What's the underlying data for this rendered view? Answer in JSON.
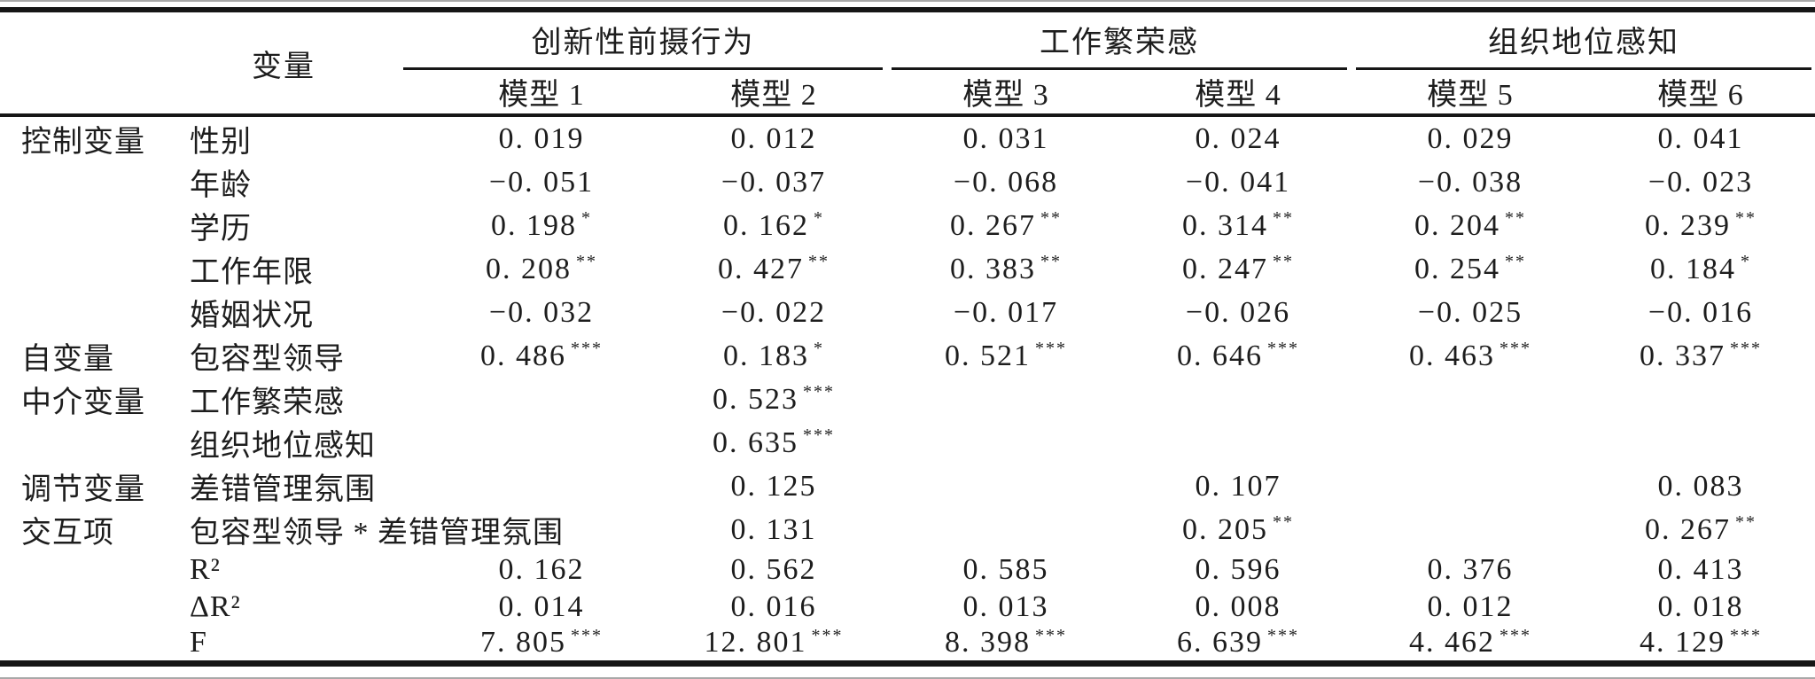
{
  "table": {
    "variable_header": "变量",
    "groups": [
      {
        "label": "创新性前摄行为",
        "models": [
          "模型 1",
          "模型 2"
        ]
      },
      {
        "label": "工作繁荣感",
        "models": [
          "模型 3",
          "模型 4"
        ]
      },
      {
        "label": "组织地位感知",
        "models": [
          "模型 5",
          "模型 6"
        ]
      }
    ],
    "rows": [
      {
        "category": "控制变量",
        "variable": "性别",
        "cells": [
          {
            "v": "0.019"
          },
          {
            "v": "0.012"
          },
          {
            "v": "0.031"
          },
          {
            "v": "0.024"
          },
          {
            "v": "0.029"
          },
          {
            "v": "0.041"
          }
        ]
      },
      {
        "category": "",
        "variable": "年龄",
        "cells": [
          {
            "v": "−0.051"
          },
          {
            "v": "−0.037"
          },
          {
            "v": "−0.068"
          },
          {
            "v": "−0.041"
          },
          {
            "v": "−0.038"
          },
          {
            "v": "−0.023"
          }
        ]
      },
      {
        "category": "",
        "variable": "学历",
        "cells": [
          {
            "v": "0.198",
            "sig": "*"
          },
          {
            "v": "0.162",
            "sig": "*"
          },
          {
            "v": "0.267",
            "sig": "**"
          },
          {
            "v": "0.314",
            "sig": "**"
          },
          {
            "v": "0.204",
            "sig": "**"
          },
          {
            "v": "0.239",
            "sig": "**"
          }
        ]
      },
      {
        "category": "",
        "variable": "工作年限",
        "cells": [
          {
            "v": "0.208",
            "sig": "**"
          },
          {
            "v": "0.427",
            "sig": "**"
          },
          {
            "v": "0.383",
            "sig": "**"
          },
          {
            "v": "0.247",
            "sig": "**"
          },
          {
            "v": "0.254",
            "sig": "**"
          },
          {
            "v": "0.184",
            "sig": "*"
          }
        ]
      },
      {
        "category": "",
        "variable": "婚姻状况",
        "cells": [
          {
            "v": "−0.032"
          },
          {
            "v": "−0.022"
          },
          {
            "v": "−0.017"
          },
          {
            "v": "−0.026"
          },
          {
            "v": "−0.025"
          },
          {
            "v": "−0.016"
          }
        ]
      },
      {
        "category": "自变量",
        "variable": "包容型领导",
        "cells": [
          {
            "v": "0.486",
            "sig": "***"
          },
          {
            "v": "0.183",
            "sig": "*"
          },
          {
            "v": "0.521",
            "sig": "***"
          },
          {
            "v": "0.646",
            "sig": "***"
          },
          {
            "v": "0.463",
            "sig": "***"
          },
          {
            "v": "0.337",
            "sig": "***"
          }
        ]
      },
      {
        "category": "中介变量",
        "variable": "工作繁荣感",
        "cells": [
          null,
          {
            "v": "0.523",
            "sig": "***"
          },
          null,
          null,
          null,
          null
        ]
      },
      {
        "category": "",
        "variable": "组织地位感知",
        "cells": [
          null,
          {
            "v": "0.635",
            "sig": "***"
          },
          null,
          null,
          null,
          null
        ]
      },
      {
        "category": "调节变量",
        "variable": "差错管理氛围",
        "cells": [
          null,
          {
            "v": "0.125"
          },
          null,
          {
            "v": "0.107"
          },
          null,
          {
            "v": "0.083"
          }
        ]
      },
      {
        "category": "交互项",
        "variable": "包容型领导 * 差错管理氛围",
        "cells": [
          null,
          {
            "v": "0.131"
          },
          null,
          {
            "v": "0.205",
            "sig": "**"
          },
          null,
          {
            "v": "0.267",
            "sig": "**"
          }
        ]
      },
      {
        "category": "",
        "variable": "R²",
        "cells": [
          {
            "v": "0.162"
          },
          {
            "v": "0.562"
          },
          {
            "v": "0.585"
          },
          {
            "v": "0.596"
          },
          {
            "v": "0.376"
          },
          {
            "v": "0.413"
          }
        ]
      },
      {
        "category": "",
        "variable": "ΔR²",
        "cells": [
          {
            "v": "0.014"
          },
          {
            "v": "0.016"
          },
          {
            "v": "0.013"
          },
          {
            "v": "0.008"
          },
          {
            "v": "0.012"
          },
          {
            "v": "0.018"
          }
        ]
      },
      {
        "category": "",
        "variable": "F",
        "cells": [
          {
            "v": "7.805",
            "sig": "***"
          },
          {
            "v": "12.801",
            "sig": "***"
          },
          {
            "v": "8.398",
            "sig": "***"
          },
          {
            "v": "6.639",
            "sig": "***"
          },
          {
            "v": "4.462",
            "sig": "***"
          },
          {
            "v": "4.129",
            "sig": "***"
          }
        ]
      }
    ],
    "colors": {
      "text": "#1d1d1d",
      "rule": "#161616",
      "background": "#ffffff"
    }
  }
}
